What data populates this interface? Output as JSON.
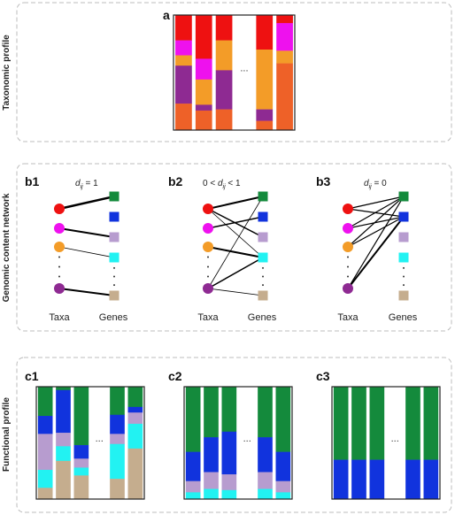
{
  "side_labels": {
    "a": "Taxonomic profile",
    "b": "Genomic content network",
    "c": "Functional profile"
  },
  "panel_letters": {
    "a": "a",
    "b1": "b1",
    "b2": "b2",
    "b3": "b3",
    "c1": "c1",
    "c2": "c2",
    "c3": "c3"
  },
  "network_labels": {
    "taxa": "Taxa",
    "genes": "Genes",
    "b1_formula": {
      "var": "d",
      "sub": "ij",
      "rel": " = 1"
    },
    "b2_formula": {
      "pre": "0 < ",
      "var": "d",
      "sub": "ij",
      "post": " < 1"
    },
    "b3_formula": {
      "var": "d",
      "sub": "ij",
      "rel": " = 0"
    }
  },
  "ellipsis": "...",
  "colors": {
    "red": "#ee1111",
    "magenta": "#ee11ee",
    "orange": "#f39c28",
    "purple": "#8e2a92",
    "darkorange": "#ee6128",
    "green": "#148a3c",
    "blue": "#1133dd",
    "lavender": "#b79ccf",
    "cyan": "#22f2f2",
    "tan": "#c5ad8e"
  },
  "taxa_colors": [
    "red",
    "magenta",
    "orange",
    "purple"
  ],
  "gene_colors": [
    "green",
    "blue",
    "lavender",
    "cyan",
    "tan"
  ],
  "taxonomic_profile": [
    [
      [
        "red",
        0.22
      ],
      [
        "magenta",
        0.13
      ],
      [
        "orange",
        0.09
      ],
      [
        "purple",
        0.33
      ],
      [
        "darkorange",
        0.23
      ]
    ],
    [
      [
        "red",
        0.38
      ],
      [
        "magenta",
        0.18
      ],
      [
        "orange",
        0.22
      ],
      [
        "purple",
        0.05
      ],
      [
        "darkorange",
        0.17
      ]
    ],
    [
      [
        "red",
        0.22
      ],
      [
        "orange",
        0.26
      ],
      [
        "purple",
        0.34
      ],
      [
        "darkorange",
        0.18
      ]
    ],
    [
      [
        "red",
        0.3
      ],
      [
        "orange",
        0.52
      ],
      [
        "purple",
        0.1
      ],
      [
        "darkorange",
        0.08
      ]
    ],
    [
      [
        "red",
        0.07
      ],
      [
        "magenta",
        0.24
      ],
      [
        "orange",
        0.11
      ],
      [
        "darkorange",
        0.58
      ]
    ]
  ],
  "functional_profiles": {
    "c1": [
      [
        [
          "green",
          0.26
        ],
        [
          "blue",
          0.16
        ],
        [
          "lavender",
          0.32
        ],
        [
          "cyan",
          0.16
        ],
        [
          "tan",
          0.1
        ]
      ],
      [
        [
          "green",
          0.03
        ],
        [
          "blue",
          0.38
        ],
        [
          "lavender",
          0.12
        ],
        [
          "cyan",
          0.13
        ],
        [
          "tan",
          0.34
        ]
      ],
      [
        [
          "green",
          0.52
        ],
        [
          "blue",
          0.12
        ],
        [
          "lavender",
          0.08
        ],
        [
          "cyan",
          0.07
        ],
        [
          "tan",
          0.21
        ]
      ],
      [
        [
          "green",
          0.25
        ],
        [
          "blue",
          0.17
        ],
        [
          "lavender",
          0.09
        ],
        [
          "cyan",
          0.31
        ],
        [
          "tan",
          0.18
        ]
      ],
      [
        [
          "green",
          0.18
        ],
        [
          "blue",
          0.05
        ],
        [
          "lavender",
          0.1
        ],
        [
          "cyan",
          0.22
        ],
        [
          "tan",
          0.45
        ]
      ]
    ],
    "c2": [
      [
        [
          "green",
          0.58
        ],
        [
          "blue",
          0.26
        ],
        [
          "lavender",
          0.1
        ],
        [
          "cyan",
          0.06
        ]
      ],
      [
        [
          "green",
          0.45
        ],
        [
          "blue",
          0.31
        ],
        [
          "lavender",
          0.15
        ],
        [
          "cyan",
          0.09
        ]
      ],
      [
        [
          "green",
          0.4
        ],
        [
          "blue",
          0.38
        ],
        [
          "lavender",
          0.14
        ],
        [
          "cyan",
          0.08
        ]
      ],
      [
        [
          "green",
          0.45
        ],
        [
          "blue",
          0.31
        ],
        [
          "lavender",
          0.15
        ],
        [
          "cyan",
          0.09
        ]
      ],
      [
        [
          "green",
          0.58
        ],
        [
          "blue",
          0.26
        ],
        [
          "lavender",
          0.1
        ],
        [
          "cyan",
          0.06
        ]
      ]
    ],
    "c3": [
      [
        [
          "green",
          0.65
        ],
        [
          "blue",
          0.35
        ]
      ],
      [
        [
          "green",
          0.65
        ],
        [
          "blue",
          0.35
        ]
      ],
      [
        [
          "green",
          0.65
        ],
        [
          "blue",
          0.35
        ]
      ],
      [
        [
          "green",
          0.65
        ],
        [
          "blue",
          0.35
        ]
      ],
      [
        [
          "green",
          0.65
        ],
        [
          "blue",
          0.35
        ]
      ]
    ]
  },
  "networks": {
    "b1": [
      [
        0,
        0,
        2.5
      ],
      [
        1,
        2,
        2.0
      ],
      [
        2,
        3,
        0.8
      ],
      [
        3,
        4,
        2.0
      ]
    ],
    "b2": [
      [
        0,
        0,
        2.0
      ],
      [
        0,
        2,
        1.5
      ],
      [
        0,
        3,
        0.8
      ],
      [
        1,
        1,
        1.5
      ],
      [
        2,
        3,
        2.0
      ],
      [
        3,
        0,
        0.8
      ],
      [
        3,
        3,
        1.5
      ],
      [
        3,
        4,
        0.8
      ]
    ],
    "b3": [
      [
        0,
        0,
        1.2
      ],
      [
        0,
        1,
        1.2
      ],
      [
        1,
        0,
        1.2
      ],
      [
        1,
        1,
        1.2
      ],
      [
        2,
        0,
        1.2
      ],
      [
        2,
        1,
        1.2
      ],
      [
        3,
        0,
        1.2
      ],
      [
        3,
        1,
        2.0
      ]
    ]
  }
}
